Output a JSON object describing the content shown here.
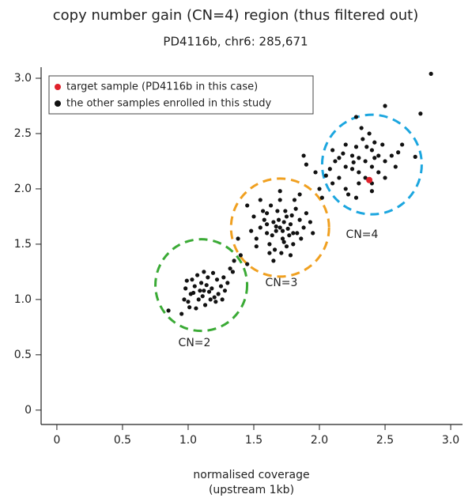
{
  "chart_data": {
    "type": "scatter",
    "title": "copy number gain (CN=4) region (thus filtered out)",
    "subtitle": "PD4116b, chr6: 285,671",
    "xlabel": [
      "normalised coverage",
      "(upstream 1kb)"
    ],
    "xlim": [
      -0.12,
      3.09
    ],
    "ylim": [
      -0.13,
      3.1
    ],
    "xticks": [
      0,
      0.5,
      {
        "value": 1,
        "label": "1.0"
      },
      1.5,
      {
        "value": 2,
        "label": "2.0"
      },
      2.5,
      {
        "value": 3,
        "label": "3.0"
      }
    ],
    "yticks": [
      0,
      0.5,
      {
        "value": 1,
        "label": "1.0"
      },
      1.5,
      {
        "value": 2,
        "label": "2.0"
      },
      2.5,
      {
        "value": 3,
        "label": "3.0"
      }
    ],
    "legend": "top-left",
    "annotations": [
      "CN=2",
      "CN=3",
      "CN=4"
    ],
    "series": [
      {
        "name": "target sample (PD4116b in this case)",
        "color": "#e0212b",
        "x": [
          2.38
        ],
        "values": [
          2.08
        ]
      },
      {
        "name": "the other samples enrolled in this study",
        "color": "#111111",
        "x": [
          1.02,
          1.05,
          1.08,
          1.1,
          1.12,
          1.15,
          1.18,
          1.2,
          1.22,
          1.25,
          1.0,
          0.98,
          1.03,
          1.07,
          1.13,
          1.17,
          1.23,
          1.27,
          1.3,
          0.97,
          1.06,
          1.09,
          1.14,
          1.19,
          1.21,
          1.11,
          1.04,
          0.99,
          1.16,
          1.26,
          1.28,
          1.12,
          1.01,
          0.85,
          0.95,
          1.32,
          1.35,
          1.45,
          1.4,
          1.38,
          1.34,
          1.6,
          1.65,
          1.7,
          1.75,
          1.8,
          1.72,
          1.68,
          1.62,
          1.78,
          1.85,
          1.58,
          1.55,
          1.67,
          1.73,
          1.77,
          1.82,
          1.88,
          1.63,
          1.7,
          1.75,
          1.66,
          1.8,
          1.9,
          1.52,
          1.6,
          1.72,
          1.69,
          1.76,
          1.83,
          1.64,
          1.74,
          1.81,
          1.57,
          1.86,
          1.93,
          1.71,
          1.78,
          1.65,
          1.62,
          1.7,
          1.85,
          1.5,
          1.55,
          1.45,
          1.52,
          1.6,
          1.79,
          1.67,
          1.73,
          1.95,
          1.48,
          2.2,
          2.25,
          2.3,
          2.35,
          2.4,
          2.15,
          2.1,
          2.2,
          2.28,
          2.33,
          2.4,
          2.45,
          2.5,
          2.48,
          2.38,
          2.05,
          2.0,
          2.12,
          2.18,
          2.25,
          2.3,
          2.35,
          2.42,
          2.55,
          2.5,
          2.22,
          2.28,
          2.15,
          2.08,
          2.42,
          2.3,
          2.26,
          2.36,
          2.45,
          2.2,
          2.1,
          2.58,
          2.32,
          2.4,
          2.02,
          1.88,
          1.9,
          1.97,
          2.85,
          2.77,
          2.5,
          2.28,
          2.63,
          2.73,
          2.6,
          2.4
        ],
        "values": [
          1.05,
          1.12,
          1.0,
          1.15,
          1.08,
          1.2,
          1.1,
          1.02,
          1.18,
          1.12,
          0.98,
          1.1,
          1.18,
          1.22,
          0.95,
          1.0,
          1.05,
          1.2,
          1.15,
          1.0,
          0.92,
          1.08,
          1.13,
          1.24,
          0.98,
          1.03,
          1.06,
          1.17,
          1.07,
          1.0,
          1.08,
          1.25,
          0.93,
          0.9,
          0.87,
          1.28,
          1.35,
          1.32,
          1.4,
          1.55,
          1.25,
          1.6,
          1.7,
          1.65,
          1.75,
          1.6,
          1.55,
          1.8,
          1.5,
          1.68,
          1.72,
          1.72,
          1.65,
          1.62,
          1.7,
          1.58,
          1.82,
          1.65,
          1.85,
          1.9,
          1.48,
          1.45,
          1.5,
          1.78,
          1.55,
          1.78,
          1.62,
          1.72,
          1.64,
          1.6,
          1.58,
          1.8,
          1.9,
          1.8,
          1.55,
          1.7,
          1.42,
          1.4,
          1.35,
          1.42,
          1.98,
          1.95,
          1.75,
          1.9,
          1.85,
          1.48,
          1.68,
          1.76,
          1.66,
          1.52,
          1.6,
          1.62,
          2.2,
          2.3,
          2.15,
          2.25,
          2.35,
          2.1,
          2.05,
          2.0,
          2.38,
          2.45,
          2.2,
          2.3,
          2.25,
          2.4,
          2.5,
          2.12,
          2.0,
          2.25,
          2.32,
          2.18,
          2.05,
          2.1,
          2.28,
          2.3,
          2.1,
          1.95,
          1.92,
          2.28,
          2.18,
          2.42,
          2.28,
          2.24,
          2.38,
          2.15,
          2.4,
          2.35,
          2.2,
          2.55,
          1.98,
          1.92,
          2.3,
          2.22,
          2.15,
          3.04,
          2.68,
          2.75,
          2.65,
          2.4,
          2.29,
          2.33,
          2.05
        ]
      }
    ]
  }
}
